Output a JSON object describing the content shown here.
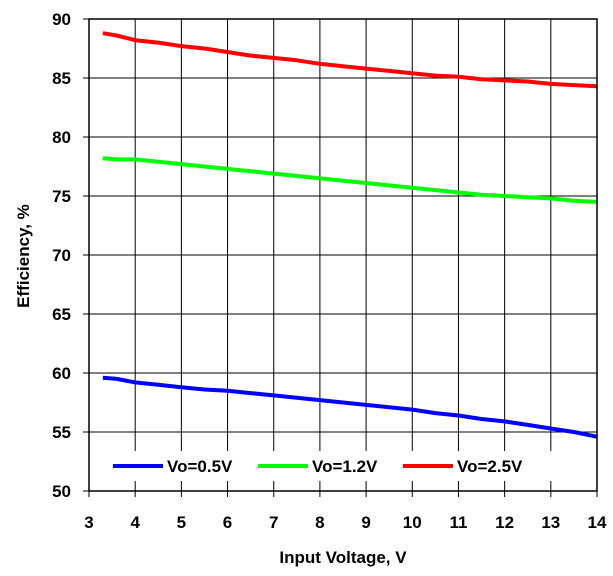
{
  "chart_data": {
    "type": "line",
    "title": "",
    "xlabel": "Input Voltage, V",
    "ylabel": "Efficiency, %",
    "xlim": [
      3,
      14
    ],
    "ylim": [
      50,
      90
    ],
    "xticks": [
      "3",
      "4",
      "5",
      "6",
      "7",
      "8",
      "9",
      "10",
      "11",
      "12",
      "13",
      "14"
    ],
    "yticks": [
      "50",
      "55",
      "60",
      "65",
      "70",
      "75",
      "80",
      "85",
      "90"
    ],
    "grid": true,
    "legend_position": "bottom",
    "series": [
      {
        "name": "Vo=0.5V",
        "color": "#0000FF",
        "x": [
          3.3,
          3.6,
          4.0,
          4.5,
          5.0,
          5.5,
          6.0,
          6.5,
          7.0,
          7.5,
          8.0,
          8.5,
          9.0,
          9.5,
          10.0,
          10.5,
          11.0,
          11.5,
          12.0,
          12.5,
          13.0,
          13.5,
          14.0
        ],
        "y": [
          59.6,
          59.5,
          59.2,
          59.0,
          58.8,
          58.6,
          58.5,
          58.3,
          58.1,
          57.9,
          57.7,
          57.5,
          57.3,
          57.1,
          56.9,
          56.6,
          56.4,
          56.1,
          55.9,
          55.6,
          55.3,
          55.0,
          54.6
        ]
      },
      {
        "name": "Vo=1.2V",
        "color": "#00FF00",
        "x": [
          3.3,
          3.6,
          4.0,
          4.5,
          5.0,
          5.5,
          6.0,
          6.5,
          7.0,
          7.5,
          8.0,
          8.5,
          9.0,
          9.5,
          10.0,
          10.5,
          11.0,
          11.5,
          12.0,
          12.5,
          13.0,
          13.5,
          14.0
        ],
        "y": [
          78.2,
          78.1,
          78.1,
          77.9,
          77.7,
          77.5,
          77.3,
          77.1,
          76.9,
          76.7,
          76.5,
          76.3,
          76.1,
          75.9,
          75.7,
          75.5,
          75.3,
          75.1,
          75.0,
          74.9,
          74.8,
          74.6,
          74.5
        ]
      },
      {
        "name": "Vo=2.5V",
        "color": "#FF0000",
        "x": [
          3.3,
          3.6,
          4.0,
          4.5,
          5.0,
          5.5,
          6.0,
          6.5,
          7.0,
          7.5,
          8.0,
          8.5,
          9.0,
          9.5,
          10.0,
          10.5,
          11.0,
          11.5,
          12.0,
          12.5,
          13.0,
          13.5,
          14.0
        ],
        "y": [
          88.8,
          88.6,
          88.2,
          88.0,
          87.7,
          87.5,
          87.2,
          86.9,
          86.7,
          86.5,
          86.2,
          86.0,
          85.8,
          85.6,
          85.4,
          85.2,
          85.1,
          84.9,
          84.8,
          84.7,
          84.5,
          84.4,
          84.3
        ]
      }
    ]
  }
}
